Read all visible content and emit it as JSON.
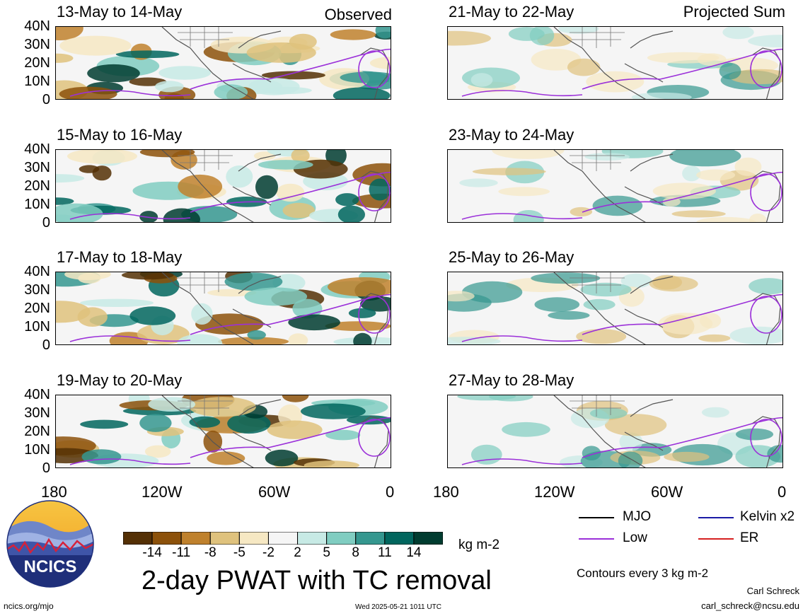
{
  "headers": {
    "left": "Observed",
    "right": "Projected Sum"
  },
  "panels_left": [
    {
      "title": "13-May to 14-May"
    },
    {
      "title": "15-May to 16-May"
    },
    {
      "title": "17-May to 18-May"
    },
    {
      "title": "19-May to 20-May"
    }
  ],
  "panels_right": [
    {
      "title": "21-May to 22-May"
    },
    {
      "title": "23-May to 24-May"
    },
    {
      "title": "25-May to 26-May"
    },
    {
      "title": "27-May to 28-May"
    }
  ],
  "lat_labels": [
    "40N",
    "30N",
    "20N",
    "10N",
    "0"
  ],
  "lon_labels": [
    "180",
    "120W",
    "60W",
    "0"
  ],
  "colorbar": {
    "ticks": [
      "-14",
      "-11",
      "-8",
      "-5",
      "-2",
      "2",
      "5",
      "8",
      "11",
      "14"
    ],
    "colors": [
      "#543005",
      "#8c510a",
      "#bf812d",
      "#dfc27d",
      "#f6e8c3",
      "#f5f5f5",
      "#c7eae5",
      "#80cdc1",
      "#35978f",
      "#01665e",
      "#003c30"
    ],
    "units": "kg m-2"
  },
  "legend": {
    "items": [
      {
        "label": "MJO",
        "color": "#000000"
      },
      {
        "label": "Kelvin x2",
        "color": "#1a1aa6"
      },
      {
        "label": "Low",
        "color": "#9b30d9"
      },
      {
        "label": "ER",
        "color": "#d62020"
      }
    ],
    "contours_note": "Contours every 3 kg m-2"
  },
  "title": "2-day PWAT with TC removal",
  "logo_text": "NCICS",
  "footer": {
    "url": "ncics.org/mjo",
    "timestamp": "Wed 2025-05-21 1011 UTC",
    "author": "Carl Schreck",
    "email": "carl_schreck@ncsu.edu"
  }
}
